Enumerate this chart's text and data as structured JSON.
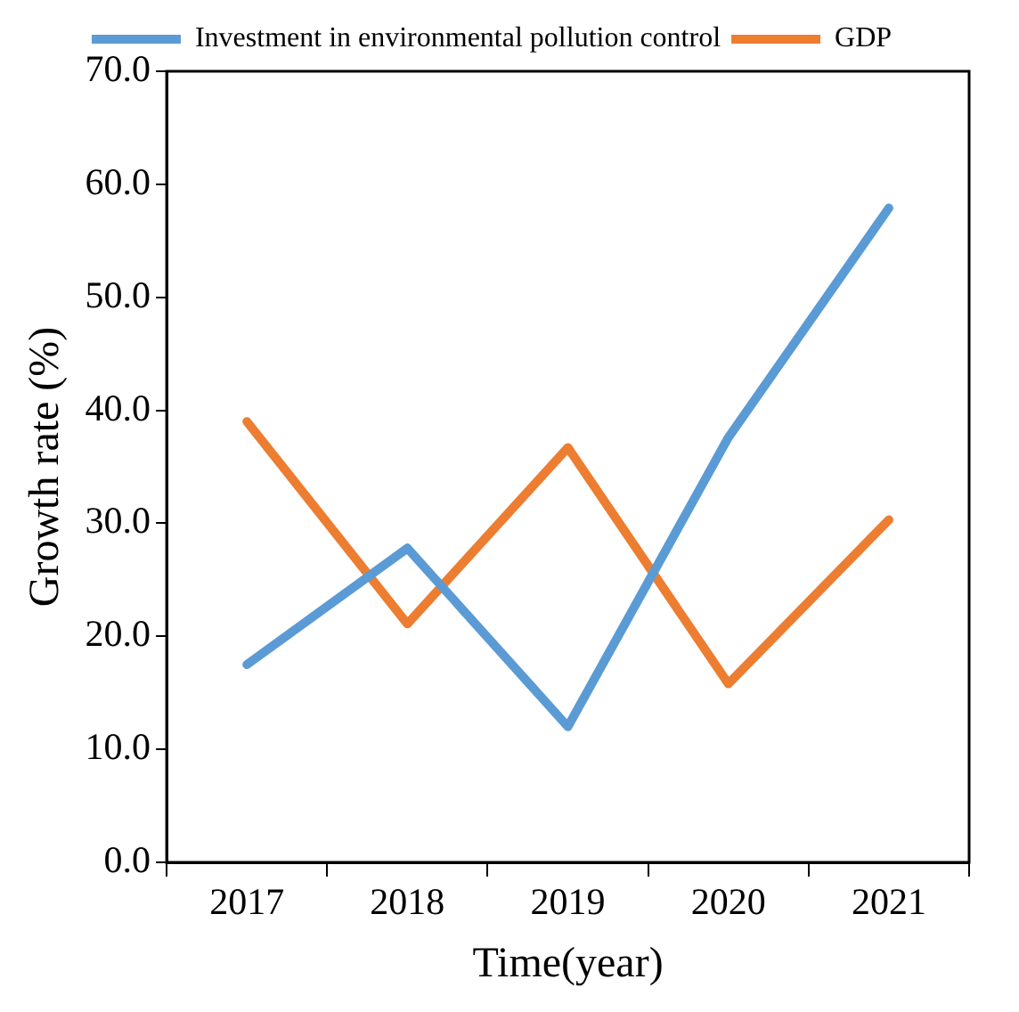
{
  "chart_data": {
    "type": "line",
    "xlabel": "Time(year)",
    "ylabel": "Growth rate (%)",
    "categories": [
      "2017",
      "2018",
      "2019",
      "2020",
      "2021"
    ],
    "series": [
      {
        "name": "Investment in environmental pollution control",
        "color": "#5b9bd5",
        "values": [
          17.5,
          27.8,
          12.0,
          37.6,
          57.9
        ]
      },
      {
        "name": "GDP",
        "color": "#ed7d31",
        "values": [
          39.0,
          21.1,
          36.7,
          15.8,
          30.3
        ]
      }
    ],
    "ylim": [
      0,
      70
    ],
    "yticks": [
      {
        "value": 0,
        "label": "0.0"
      },
      {
        "value": 10,
        "label": "10.0"
      },
      {
        "value": 20,
        "label": "20.0"
      },
      {
        "value": 30,
        "label": "30.0"
      },
      {
        "value": 40,
        "label": "40.0"
      },
      {
        "value": 50,
        "label": "50.0"
      },
      {
        "value": 60,
        "label": "60.0"
      },
      {
        "value": 70,
        "label": "70.0"
      }
    ],
    "legend": "top",
    "grid": false,
    "marker": "none",
    "line_style": "solid"
  }
}
